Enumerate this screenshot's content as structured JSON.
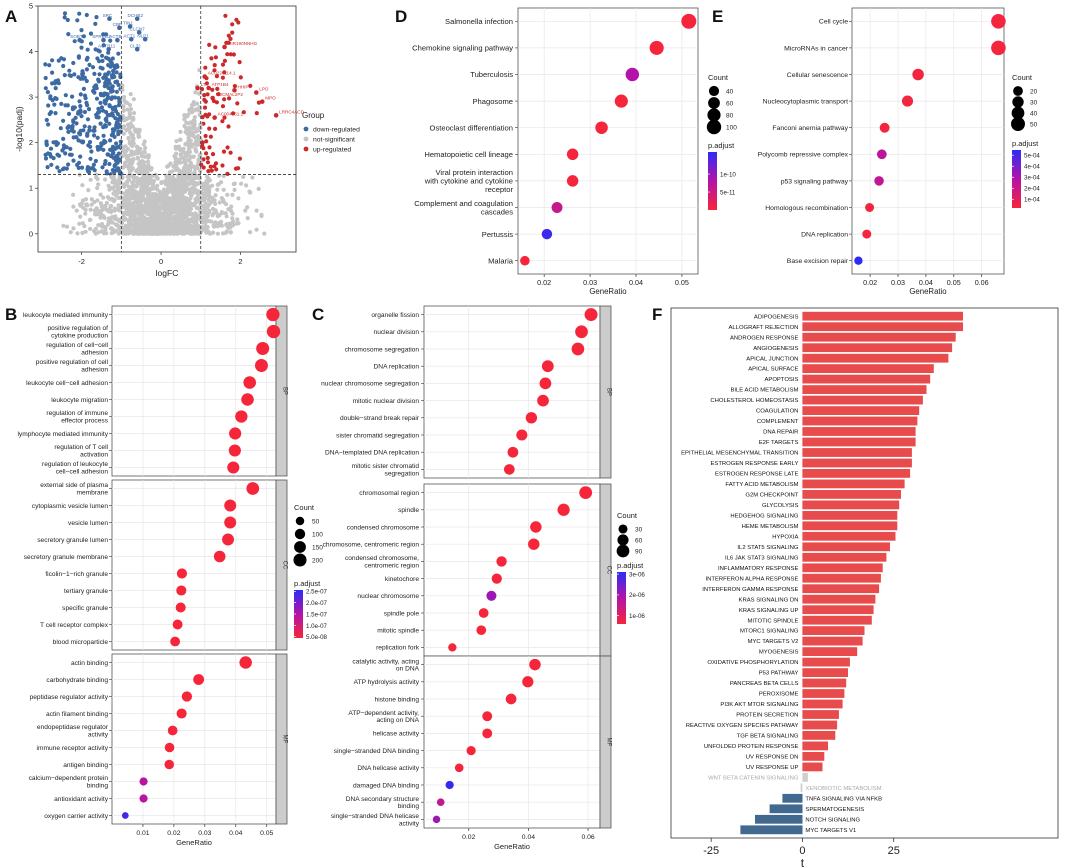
{
  "panel_letters": [
    "A",
    "B",
    "C",
    "D",
    "E",
    "F"
  ],
  "colors": {
    "down": "#3D6AA3",
    "up": "#CC2A2A",
    "ns": "#C5C5C5",
    "f_up": "#E84B4B",
    "f_down": "#41698F",
    "f_ns": "#CFCFCF",
    "gridbg": "#FFFFFF",
    "grid": "#E7E7E7",
    "strip": "#CCCCCC",
    "grad_top": "#2C2CF5",
    "grad_mid": "#B313A8",
    "grad_bot": "#F6263A"
  },
  "chart_data": [
    {
      "id": "A",
      "type": "scatter",
      "title": "",
      "xlabel": "logFC",
      "ylabel": "-log10(padj)",
      "xlim": [
        -3.1,
        3.4
      ],
      "ylim": [
        -0.4,
        5.0
      ],
      "xticks": [
        "-2",
        "0",
        "2"
      ],
      "xtick_values": [
        -2,
        0,
        2
      ],
      "yticks": [
        "0",
        "1",
        "2",
        "3",
        "4",
        "5"
      ],
      "ytick_values": [
        0,
        1,
        2,
        3,
        4,
        5
      ],
      "vlines": [
        -1,
        1
      ],
      "hline": 1.3,
      "legend_title": "Group",
      "legend": [
        "down-regulated",
        "not-significant",
        "up-regulated"
      ],
      "labels": [
        {
          "text": "SRC",
          "x": -1.3,
          "y": 4.72,
          "group": "down"
        },
        {
          "text": "DCHB2",
          "x": -0.6,
          "y": 4.72,
          "group": "down"
        },
        {
          "text": "CBP",
          "x": -1.05,
          "y": 4.52,
          "group": "down"
        },
        {
          "text": "TIN1",
          "x": -0.78,
          "y": 4.55,
          "group": "down"
        },
        {
          "text": "CLCN7",
          "x": -0.55,
          "y": 4.42,
          "group": "down"
        },
        {
          "text": "SOBT1",
          "x": -2.05,
          "y": 4.25,
          "group": "down"
        },
        {
          "text": "SPRED3",
          "x": -1.45,
          "y": 4.25,
          "group": "down"
        },
        {
          "text": "ACTB",
          "x": -1.1,
          "y": 4.25,
          "group": "down"
        },
        {
          "text": "ACT1",
          "x": -0.75,
          "y": 4.27,
          "group": "down"
        },
        {
          "text": "NLP1",
          "x": -0.4,
          "y": 4.27,
          "group": "down"
        },
        {
          "text": "ACTR11",
          "x": -1.32,
          "y": 4.05,
          "group": "down"
        },
        {
          "text": "CL32",
          "x": -0.6,
          "y": 4.05,
          "group": "down"
        },
        {
          "text": "MIR190NNHG",
          "x": 1.6,
          "y": 4.1,
          "group": "up"
        },
        {
          "text": "AC0224114.1",
          "x": 1.1,
          "y": 3.45,
          "group": "up"
        },
        {
          "text": "LTA",
          "x": 0.92,
          "y": 3.2,
          "group": "up"
        },
        {
          "text": "ATP1B4",
          "x": 1.2,
          "y": 3.2,
          "group": "up"
        },
        {
          "text": "HHIP",
          "x": 1.85,
          "y": 3.15,
          "group": "up"
        },
        {
          "text": "LPO",
          "x": 2.4,
          "y": 3.1,
          "group": "up"
        },
        {
          "text": "PDCMAL2P2",
          "x": 1.3,
          "y": 2.98,
          "group": "up"
        },
        {
          "text": "MPO",
          "x": 2.55,
          "y": 2.9,
          "group": "up"
        },
        {
          "text": "AC004061.1",
          "x": 1.35,
          "y": 2.55,
          "group": "up"
        },
        {
          "text": "LRRC4ACD",
          "x": 2.9,
          "y": 2.6,
          "group": "up"
        }
      ]
    },
    {
      "id": "B",
      "type": "scatter",
      "subtype": "dotplot",
      "xlabel": "GeneRatio",
      "xlim": [
        0.0,
        0.053
      ],
      "xticks": [
        "0.01",
        "0.02",
        "0.03",
        "0.04",
        "0.05"
      ],
      "xtick_values": [
        0.01,
        0.02,
        0.03,
        0.04,
        0.05
      ],
      "size_legend_title": "Count",
      "size_legend": [
        50,
        100,
        150,
        200
      ],
      "color_legend_title": "p.adjust",
      "color_legend": [
        "2.5e-07",
        "2.0e-07",
        "1.5e-07",
        "1.0e-07",
        "5.0e-08"
      ],
      "facets": [
        {
          "strip": "BP",
          "terms": [
            "leukocyte mediated immunity",
            "positive regulation of\ncytokine production",
            "regulation of cell−cell\nadhesion",
            "positive regulation of cell\nadhesion",
            "leukocyte cell−cell adhesion",
            "leukocyte migration",
            "regulation of immune\neffector process",
            "lymphocyte mediated immunity",
            "regulation of T cell\nactivation",
            "regulation of leukocyte\ncell−cell adhesion"
          ],
          "ratio": [
            0.052,
            0.0522,
            0.0487,
            0.0483,
            0.0445,
            0.0438,
            0.0418,
            0.0398,
            0.0397,
            0.0392
          ],
          "count": [
            210,
            212,
            198,
            196,
            180,
            178,
            170,
            162,
            161,
            159
          ],
          "padj": [
            5e-08,
            5e-08,
            5e-08,
            5e-08,
            5e-08,
            5e-08,
            5e-08,
            5e-08,
            5e-08,
            5e-08
          ]
        },
        {
          "strip": "CC",
          "terms": [
            "external side of plasma\nmembrane",
            "cytoplasmic vesicle lumen",
            "vesicle lumen",
            "secretory granule lumen",
            "secretory granule membrane",
            "ficolin−1−rich granule",
            "tertiary granule",
            "specific granule",
            "T cell receptor complex",
            "blood microparticle"
          ],
          "ratio": [
            0.0455,
            0.0382,
            0.0382,
            0.0375,
            0.0348,
            0.0226,
            0.0224,
            0.0222,
            0.0212,
            0.0204
          ],
          "count": [
            185,
            155,
            155,
            152,
            141,
            92,
            91,
            90,
            86,
            83
          ],
          "padj": [
            5e-08,
            5e-08,
            5e-08,
            5e-08,
            5e-08,
            5e-08,
            5e-08,
            5e-08,
            5e-08,
            5e-08
          ]
        },
        {
          "strip": "MF",
          "terms": [
            "actin binding",
            "carbohydrate binding",
            "peptidase regulator activity",
            "actin filament binding",
            "endopeptidase regulator\nactivity",
            "immune receptor activity",
            "antigen binding",
            "calcium−dependent protein\nbinding",
            "antioxidant activity",
            "oxygen carrier activity"
          ],
          "ratio": [
            0.0432,
            0.028,
            0.0242,
            0.0225,
            0.0196,
            0.0186,
            0.0185,
            0.0102,
            0.0102,
            0.0043
          ],
          "count": [
            176,
            114,
            98,
            91,
            80,
            76,
            75,
            42,
            42,
            18
          ],
          "padj": [
            5e-08,
            5e-08,
            5e-08,
            5e-08,
            5e-08,
            5e-08,
            5e-08,
            1.5e-07,
            1.5e-07,
            2.5e-07
          ]
        }
      ]
    },
    {
      "id": "C",
      "type": "scatter",
      "subtype": "dotplot",
      "xlabel": "GeneRatio",
      "xlim": [
        0.005,
        0.064
      ],
      "xticks": [
        "0.02",
        "0.04",
        "0.06"
      ],
      "xtick_values": [
        0.02,
        0.04,
        0.06
      ],
      "size_legend_title": "Count",
      "size_legend": [
        30,
        60,
        90
      ],
      "color_legend_title": "p.adjust",
      "color_legend": [
        "3e-06",
        "2e-06",
        "1e-06"
      ],
      "facets": [
        {
          "strip": "BP",
          "terms": [
            "organelle fission",
            "nuclear division",
            "chromosome segregation",
            "DNA replication",
            "nuclear chromosome segregation",
            "mitotic nuclear division",
            "double−strand break repair",
            "sister chromatid segregation",
            "DNA−templated DNA replication",
            "mitotic sister chromatid\nsegregation"
          ],
          "ratio": [
            0.061,
            0.0578,
            0.0566,
            0.0465,
            0.0457,
            0.0449,
            0.041,
            0.0378,
            0.0348,
            0.0336
          ],
          "count": [
            95,
            90,
            88,
            72,
            71,
            70,
            64,
            59,
            54,
            52
          ],
          "padj": [
            5e-07,
            5e-07,
            5e-07,
            5e-07,
            5e-07,
            5e-07,
            5e-07,
            5e-07,
            5e-07,
            5e-07
          ]
        },
        {
          "strip": "CC",
          "terms": [
            "chromosomal region",
            "spindle",
            "condensed chromosome",
            "chromosome, centromeric region",
            "condensed chromosome,\ncentromeric region",
            "kinetochore",
            "nuclear chromosome",
            "spindle pole",
            "mitotic spindle",
            "replication fork"
          ],
          "ratio": [
            0.0592,
            0.0518,
            0.0425,
            0.0418,
            0.031,
            0.0294,
            0.0276,
            0.025,
            0.0242,
            0.0145
          ],
          "count": [
            92,
            81,
            66,
            65,
            48,
            46,
            43,
            39,
            38,
            22
          ],
          "padj": [
            5e-07,
            5e-07,
            5e-07,
            5e-07,
            5e-07,
            5e-07,
            2e-06,
            5e-07,
            5e-07,
            5e-07
          ]
        },
        {
          "strip": "MF",
          "terms": [
            "catalytic activity, acting\non DNA",
            "ATP hydrolysis activity",
            "histone binding",
            "ATP−dependent activity,\nacting on DNA",
            "helicase activity",
            "single−stranded DNA binding",
            "DNA helicase activity",
            "damaged DNA binding",
            "DNA secondary structure\nbinding",
            "single−stranded DNA helicase\nactivity"
          ],
          "ratio": [
            0.0422,
            0.0398,
            0.0342,
            0.0262,
            0.0262,
            0.0208,
            0.0168,
            0.0136,
            0.0106,
            0.0092
          ],
          "count": [
            66,
            62,
            53,
            41,
            41,
            32,
            26,
            21,
            16,
            14
          ],
          "padj": [
            5e-07,
            5e-07,
            5e-07,
            5e-07,
            5e-07,
            5e-07,
            5e-07,
            3e-06,
            1.5e-06,
            2e-06
          ]
        }
      ]
    },
    {
      "id": "D",
      "type": "scatter",
      "subtype": "dotplot",
      "xlabel": "GeneRatio",
      "xlim": [
        0.0143,
        0.0535
      ],
      "xticks": [
        "0.02",
        "0.03",
        "0.04",
        "0.05"
      ],
      "xtick_values": [
        0.02,
        0.03,
        0.04,
        0.05
      ],
      "size_legend_title": "Count",
      "size_legend": [
        40,
        60,
        80,
        100
      ],
      "color_legend_title": "p.adjust",
      "color_legend": [
        "1e-10",
        "5e-11"
      ],
      "terms": [
        "Salmonella infection",
        "Chemokine signaling pathway",
        "Tuberculosis",
        "Phagosome",
        "Osteoclast differentiation",
        "Hematopoietic cell lineage",
        "Viral protein interaction\nwith cytokine and cytokine\nreceptor",
        "Complement and coagulation\ncascades",
        "Pertussis",
        "Malaria"
      ],
      "ratio": [
        0.0515,
        0.0445,
        0.0392,
        0.0368,
        0.0325,
        0.0262,
        0.0262,
        0.0228,
        0.0206,
        0.0158
      ],
      "count": [
        110,
        95,
        84,
        79,
        70,
        56,
        56,
        49,
        44,
        34
      ],
      "padj": [
        1e-12,
        1e-12,
        8e-11,
        1e-12,
        1e-12,
        1e-12,
        1e-12,
        6e-11,
        1.5e-10,
        1e-12
      ]
    },
    {
      "id": "E",
      "type": "scatter",
      "subtype": "dotplot",
      "xlabel": "GeneRatio",
      "xlim": [
        0.0135,
        0.068
      ],
      "xticks": [
        "0.02",
        "0.03",
        "0.04",
        "0.05",
        "0.06"
      ],
      "xtick_values": [
        0.02,
        0.03,
        0.04,
        0.05,
        0.06
      ],
      "size_legend_title": "Count",
      "size_legend": [
        20,
        30,
        40,
        50
      ],
      "color_legend_title": "p.adjust",
      "color_legend": [
        "5e-04",
        "4e-04",
        "3e-04",
        "2e-04",
        "1e-04"
      ],
      "terms": [
        "Cell cycle",
        "MicroRNAs in cancer",
        "Cellular senescence",
        "Nucleocytoplasmic transport",
        "Fanconi anemia pathway",
        "Polycomb repressive complex",
        "p53 signaling pathway",
        "Homologous recombination",
        "DNA replication",
        "Base excision repair"
      ],
      "ratio": [
        0.066,
        0.066,
        0.0372,
        0.0334,
        0.0252,
        0.0242,
        0.0232,
        0.0198,
        0.0188,
        0.0158
      ],
      "count": [
        55,
        55,
        31,
        28,
        21,
        20,
        19,
        16,
        16,
        13
      ],
      "padj": [
        1e-05,
        1e-05,
        1e-05,
        1e-05,
        1e-05,
        0.00024,
        0.00022,
        1e-05,
        1e-05,
        0.00055
      ]
    },
    {
      "id": "F",
      "type": "bar",
      "orientation": "horizontal",
      "xlabel": "t",
      "xlim": [
        -36,
        70
      ],
      "xticks": [
        "-25",
        "0",
        "25"
      ],
      "xtick_values": [
        -25,
        0,
        25
      ],
      "categories": [
        "ADIPOGENESIS",
        "ALLOGRAFT REJECTION",
        "ANDROGEN RESPONSE",
        "ANGIOGENESIS",
        "APICAL JUNCTION",
        "APICAL SURFACE",
        "APOPTOSIS",
        "BILE ACID METABOLISM",
        "CHOLESTEROL HOMEOSTASIS",
        "COAGULATION",
        "COMPLEMENT",
        "DNA REPAIR",
        "E2F TARGETS",
        "EPITHELIAL MESENCHYMAL TRANSITION",
        "ESTROGEN RESPONSE EARLY",
        "ESTROGEN RESPONSE LATE",
        "FATTY ACID METABOLISM",
        "G2M CHECKPOINT",
        "GLYCOLYSIS",
        "HEDGEHOG SIGNALING",
        "HEME METABOLISM",
        "HYPOXIA",
        "IL2 STAT5 SIGNALING",
        "IL6 JAK STAT3 SIGNALING",
        "INFLAMMATORY RESPONSE",
        "INTERFERON ALPHA RESPONSE",
        "INTERFERON GAMMA RESPONSE",
        "KRAS SIGNALING DN",
        "KRAS SIGNALING UP",
        "MITOTIC SPINDLE",
        "MTORC1 SIGNALING",
        "MYC TARGETS V2",
        "MYOGENESIS",
        "OXIDATIVE PHOSPHORYLATION",
        "P53 PATHWAY",
        "PANCREAS BETA CELLS",
        "PEROXISOME",
        "PI3K AKT MTOR SIGNALING",
        "PROTEIN SECRETION",
        "REACTIVE OXYGEN SPECIES PATHWAY",
        "TGF BETA SIGNALING",
        "UNFOLDED PROTEIN RESPONSE",
        "UV RESPONSE DN",
        "UV RESPONSE UP",
        "WNT BETA CATENIN SIGNALING",
        "XENOBIOTIC METABOLISM",
        "TNFA SIGNALING VIA NFKB",
        "SPERMATOGENESIS",
        "NOTCH SIGNALING",
        "MYC TARGETS V1"
      ],
      "values": [
        44,
        44,
        42,
        41,
        40,
        36,
        35,
        34,
        33,
        32,
        31.5,
        31,
        31,
        30,
        30,
        29.5,
        28,
        27,
        26.5,
        26,
        26,
        25.5,
        24,
        23,
        22,
        21.5,
        21,
        20,
        19.5,
        19,
        17,
        16.5,
        15,
        13,
        12.5,
        12,
        11.5,
        11,
        10,
        9.5,
        9,
        7,
        6,
        5.5,
        1.5,
        -0.5,
        -5.5,
        -9,
        -13,
        -17
      ]
    }
  ]
}
